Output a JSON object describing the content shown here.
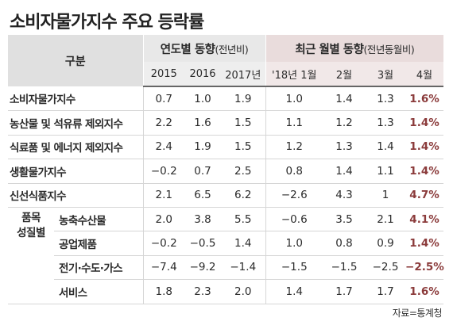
{
  "title": "소비자물가지수 주요 등락률",
  "header": {
    "category": "구분",
    "group_year": {
      "title": "연도별 동향",
      "note": "(전년비)"
    },
    "group_month": {
      "title": "최근 월별 동향",
      "note": "(전년동월비)"
    },
    "columns": [
      "2015",
      "2016",
      "2017년",
      "'18년 1월",
      "2월",
      "3월",
      "4월"
    ]
  },
  "group_label": {
    "line1": "품목",
    "line2": "성질별"
  },
  "rows": [
    {
      "name": "소비자물가지수",
      "values": [
        "0.7",
        "1.0",
        "1.9",
        "1.0",
        "1.4",
        "1.3",
        "1.6%"
      ]
    },
    {
      "name": "농산물 및 석유류 제외지수",
      "values": [
        "2.2",
        "1.6",
        "1.5",
        "1.1",
        "1.2",
        "1.3",
        "1.4%"
      ]
    },
    {
      "name": "식료품 및 에너지 제외지수",
      "values": [
        "2.4",
        "1.9",
        "1.5",
        "1.2",
        "1.3",
        "1.4",
        "1.4%"
      ]
    },
    {
      "name": "생활물가지수",
      "values": [
        "−0.2",
        "0.7",
        "2.5",
        "0.8",
        "1.4",
        "1.1",
        "1.4%"
      ]
    },
    {
      "name": "신선식품지수",
      "values": [
        "2.1",
        "6.5",
        "6.2",
        "−2.6",
        "4.3",
        "1",
        "4.7%"
      ]
    },
    {
      "name": "농축수산물",
      "values": [
        "2.0",
        "3.8",
        "5.5",
        "−0.6",
        "3.5",
        "2.1",
        "4.1%"
      ]
    },
    {
      "name": "공업제품",
      "values": [
        "−0.2",
        "−0.5",
        "1.4",
        "1.0",
        "0.8",
        "0.9",
        "1.4%"
      ]
    },
    {
      "name": "전기·수도·가스",
      "values": [
        "−7.4",
        "−9.2",
        "−1.4",
        "−1.5",
        "−1.5",
        "−2.5",
        "−2.5%"
      ]
    },
    {
      "name": "서비스",
      "values": [
        "1.8",
        "2.3",
        "2.0",
        "1.4",
        "1.7",
        "1.7",
        "1.6%"
      ]
    }
  ],
  "source": "자료=통계청",
  "colors": {
    "highlight": "#8b3b3b",
    "header_gray": "#e0e0e0",
    "header_pink": "#e9dcdc"
  }
}
